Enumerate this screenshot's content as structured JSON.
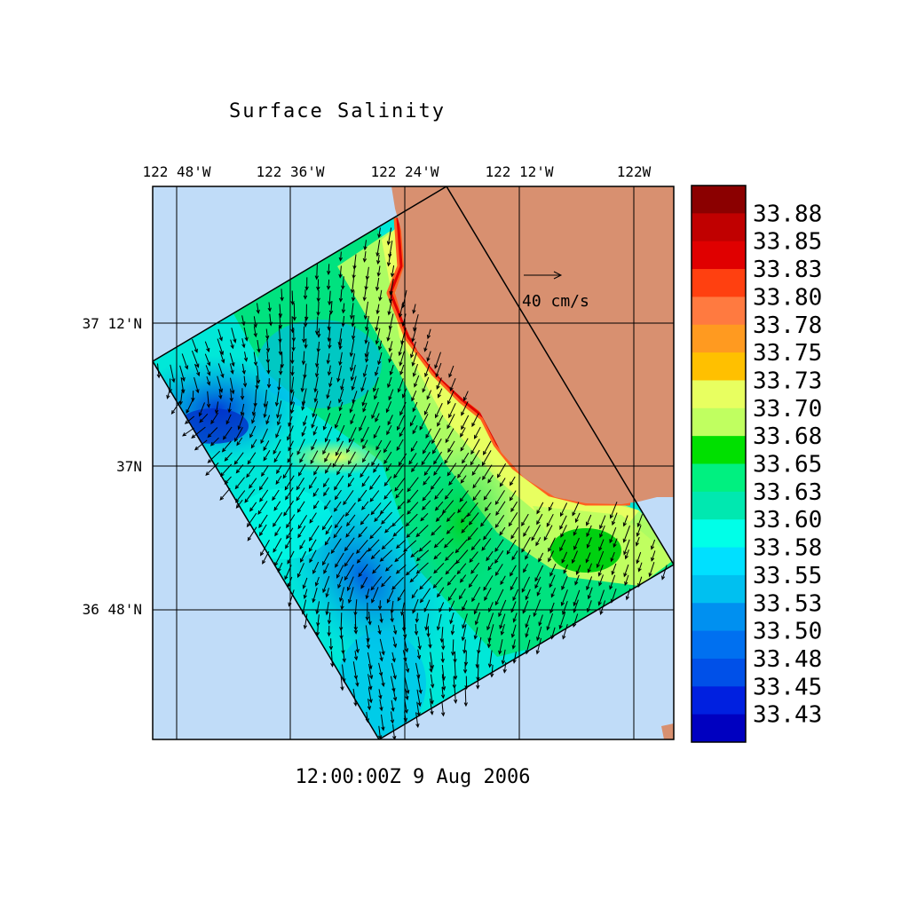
{
  "title": "Surface Salinity",
  "timestamp": "12:00:00Z   9 Aug 2006",
  "vector_scale_label": "40 cm/s",
  "lon_labels": [
    "122 48'W",
    "122 36'W",
    "122 24'W",
    "122 12'W",
    "122W"
  ],
  "lat_labels": [
    "37 12'N",
    "37N",
    "36 48'N"
  ],
  "colorbar": {
    "labels": [
      "33.88",
      "33.85",
      "33.83",
      "33.80",
      "33.78",
      "33.75",
      "33.73",
      "33.70",
      "33.68",
      "33.65",
      "33.63",
      "33.60",
      "33.58",
      "33.55",
      "33.53",
      "33.50",
      "33.48",
      "33.45",
      "33.43"
    ],
    "colors": [
      "#8b0000",
      "#c00000",
      "#e00000",
      "#ff4010",
      "#ff7a40",
      "#ff9a20",
      "#ffc000",
      "#e8ff60",
      "#c0ff60",
      "#00e000",
      "#00f080",
      "#00e8b0",
      "#00ffe8",
      "#00e0ff",
      "#00c0f0",
      "#0090f0",
      "#0070f0",
      "#0050e8",
      "#0020e0",
      "#0000c0"
    ]
  },
  "colors": {
    "ocean": "#c0dcf8",
    "land": "#d89070",
    "grid": "#000000"
  }
}
